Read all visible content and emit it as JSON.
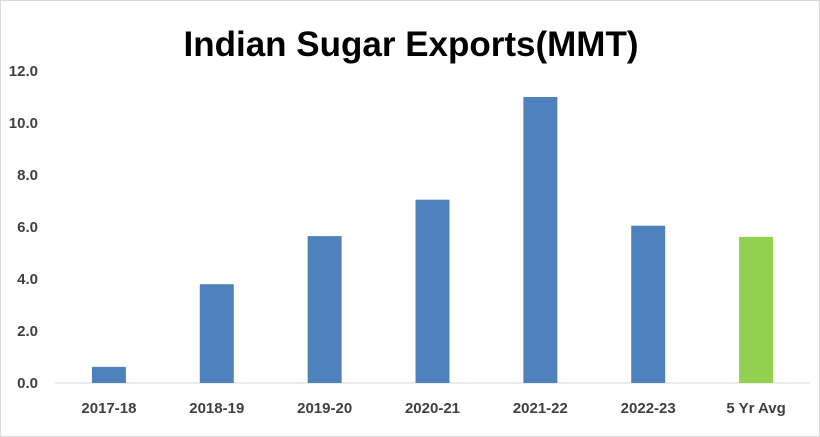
{
  "chart_data": {
    "type": "bar",
    "title": "Indian Sugar Exports(MMT)",
    "categories": [
      "2017-18",
      "2018-19",
      "2019-20",
      "2020-21",
      "2021-22",
      "2022-23",
      "5 Yr Avg"
    ],
    "values": [
      0.62,
      3.8,
      5.65,
      7.05,
      11.0,
      6.05,
      5.62
    ],
    "bar_colors": [
      "#4f81bd",
      "#4f81bd",
      "#4f81bd",
      "#4f81bd",
      "#4f81bd",
      "#4f81bd",
      "#92d050"
    ],
    "ylim": [
      0,
      12
    ],
    "yticks": [
      "0.0",
      "2.0",
      "4.0",
      "6.0",
      "8.0",
      "10.0",
      "12.0"
    ],
    "xlabel": "",
    "ylabel": "",
    "grid": false,
    "legend": "none"
  }
}
